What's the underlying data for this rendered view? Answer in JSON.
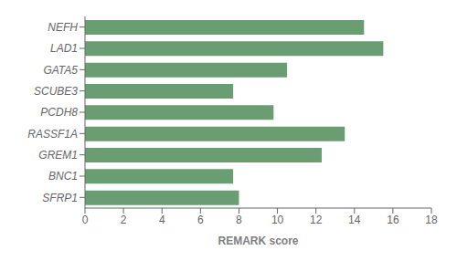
{
  "chart_data": {
    "type": "bar",
    "orientation": "horizontal",
    "categories": [
      "NEFH",
      "LAD1",
      "GATA5",
      "SCUBE3",
      "PCDH8",
      "RASSF1A",
      "GREM1",
      "BNC1",
      "SFRP1"
    ],
    "values": [
      14.5,
      15.5,
      10.5,
      7.7,
      9.8,
      13.5,
      12.3,
      7.7,
      8.0
    ],
    "color": "#6a9e72",
    "xlabel": "REMARK score",
    "xlim": [
      0,
      18
    ],
    "xticks": [
      0,
      2,
      4,
      6,
      8,
      10,
      12,
      14,
      16,
      18
    ],
    "grid": false
  }
}
